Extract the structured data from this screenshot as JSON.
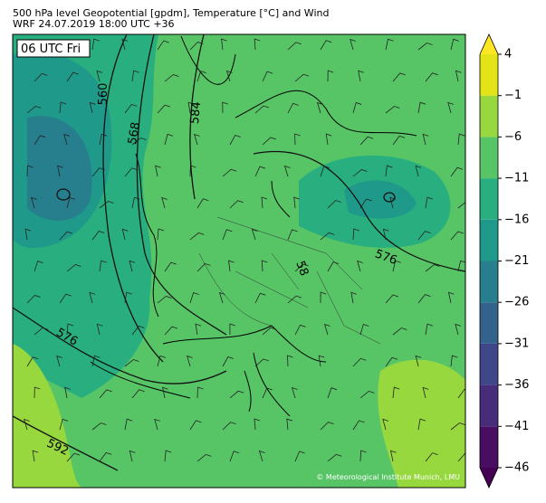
{
  "header": {
    "line1": "500 hPa level Geopotential [gpdm], Temperature [°C] and Wind",
    "line2": "WRF 24.07.2019 18:00 UTC +36"
  },
  "map": {
    "time_label": "06 UTC Fri",
    "contour_labels": [
      "560",
      "568",
      "584",
      "576",
      "576",
      "592",
      "58"
    ],
    "credit": "© Meteorological Institute Munich, LMU"
  },
  "colorbar": {
    "levels": [
      -46,
      -41,
      -36,
      -31,
      -26,
      -21,
      -16,
      -11,
      -6,
      -1,
      4
    ],
    "colors": [
      "#470e61",
      "#472c7a",
      "#3f4788",
      "#33638d",
      "#277f8e",
      "#1f9a8a",
      "#29af7f",
      "#57c566",
      "#97d83f",
      "#e3e418"
    ],
    "extend_colors": [
      "#440154",
      "#fde725"
    ],
    "ticks": [
      {
        "value": 4,
        "label": "4"
      },
      {
        "value": -1,
        "label": "−1"
      },
      {
        "value": -6,
        "label": "−6"
      },
      {
        "value": -11,
        "label": "−11"
      },
      {
        "value": -16,
        "label": "−16"
      },
      {
        "value": -21,
        "label": "−21"
      },
      {
        "value": -26,
        "label": "−26"
      },
      {
        "value": -31,
        "label": "−31"
      },
      {
        "value": -36,
        "label": "−36"
      },
      {
        "value": -41,
        "label": "−41"
      },
      {
        "value": -46,
        "label": "−46"
      }
    ]
  }
}
